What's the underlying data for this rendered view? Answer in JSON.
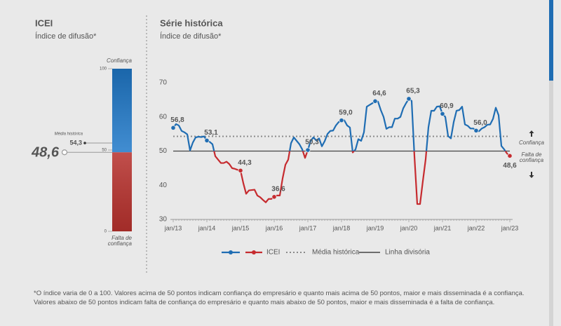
{
  "chart_data": [
    {
      "type": "gauge",
      "title": "ICEI",
      "subtitle": "Índice de difusão*",
      "value": 48.6,
      "value_label": "48,6",
      "ylim": [
        0,
        100
      ],
      "yticks": [
        0,
        50,
        100
      ],
      "top_label": "Confiança",
      "bottom_label": "Falta de confiança",
      "reference": {
        "label": "Média histórica",
        "value": 54.3,
        "value_label": "54,3"
      },
      "colors": {
        "above": "#1f78c8",
        "below": "#b8322e"
      }
    },
    {
      "type": "line",
      "title": "Série histórica",
      "subtitle": "Índice de difusão*",
      "categories": [
        "jan/13",
        null,
        null,
        null,
        null,
        null,
        null,
        null,
        null,
        null,
        null,
        null,
        "jan/14",
        null,
        null,
        null,
        null,
        null,
        null,
        null,
        null,
        null,
        null,
        null,
        "jan/15",
        null,
        null,
        null,
        null,
        null,
        null,
        null,
        null,
        null,
        null,
        null,
        "jan/16",
        null,
        null,
        null,
        null,
        null,
        null,
        null,
        null,
        null,
        null,
        null,
        "jan/17",
        null,
        null,
        null,
        null,
        null,
        null,
        null,
        null,
        null,
        null,
        null,
        "jan/18",
        null,
        null,
        null,
        null,
        null,
        null,
        null,
        null,
        null,
        null,
        null,
        "jan/19",
        null,
        null,
        null,
        null,
        null,
        null,
        null,
        null,
        null,
        null,
        null,
        "jan/20",
        null,
        null,
        null,
        null,
        null,
        null,
        null,
        null,
        null,
        null,
        null,
        "jan/21",
        null,
        null,
        null,
        null,
        null,
        null,
        null,
        null,
        null,
        null,
        null,
        "jan/22",
        null,
        null,
        null,
        null,
        null,
        null,
        null,
        null,
        null,
        null,
        null,
        "jan/23"
      ],
      "series": [
        {
          "name": "ICEI",
          "colors": {
            "above": "#1f6db3",
            "below": "#c62b2f"
          },
          "values": [
            56.8,
            57.9,
            57.5,
            55.9,
            55.5,
            54.9,
            50.2,
            52.5,
            54.0,
            54.2,
            54.1,
            54.3,
            53.1,
            52.7,
            52.0,
            48.5,
            47.5,
            46.5,
            46.5,
            46.9,
            46.2,
            45.0,
            44.8,
            44.5,
            44.3,
            40.6,
            37.5,
            38.5,
            38.6,
            38.7,
            37.0,
            36.5,
            35.7,
            35.0,
            36.0,
            36.0,
            36.6,
            37.0,
            37.0,
            42.0,
            46.0,
            47.5,
            52.3,
            54.0,
            53.0,
            52.0,
            50.5,
            48.0,
            50.3,
            53.0,
            54.0,
            53.1,
            53.7,
            51.4,
            52.9,
            55.0,
            55.9,
            56.0,
            57.5,
            58.5,
            59.0,
            59.0,
            57.5,
            56.9,
            49.6,
            50.5,
            53.5,
            53.0,
            55.5,
            63.0,
            63.5,
            64.0,
            64.6,
            64.5,
            62.0,
            60.0,
            56.5,
            57.0,
            57.0,
            59.5,
            59.5,
            60.0,
            62.5,
            64.0,
            65.3,
            64.7,
            48.5,
            34.5,
            34.5,
            41.2,
            47.6,
            57.0,
            61.8,
            61.8,
            63.0,
            63.1,
            60.9,
            60.0,
            54.4,
            53.7,
            58.5,
            61.8,
            62.0,
            63.0,
            57.8,
            57.4,
            56.6,
            56.6,
            56.0,
            55.8,
            56.6,
            57.0,
            57.7,
            57.8,
            59.4,
            62.7,
            60.5,
            51.5,
            50.5,
            49.3,
            48.6
          ],
          "value_labels": [
            "56,8",
            null,
            null,
            null,
            null,
            null,
            null,
            null,
            null,
            null,
            null,
            null,
            "53,1",
            null,
            null,
            null,
            null,
            null,
            null,
            null,
            null,
            null,
            null,
            null,
            "44,3",
            null,
            null,
            null,
            null,
            null,
            null,
            null,
            null,
            null,
            null,
            null,
            "36,6",
            null,
            null,
            null,
            null,
            null,
            null,
            null,
            null,
            null,
            null,
            null,
            "50,3",
            null,
            null,
            null,
            null,
            null,
            null,
            null,
            null,
            null,
            null,
            null,
            "59,0",
            null,
            null,
            null,
            null,
            null,
            null,
            null,
            null,
            null,
            null,
            null,
            "64,6",
            null,
            null,
            null,
            null,
            null,
            null,
            null,
            null,
            null,
            null,
            null,
            "65,3",
            null,
            null,
            null,
            null,
            null,
            null,
            null,
            null,
            null,
            null,
            null,
            "60,9",
            null,
            null,
            null,
            null,
            null,
            null,
            null,
            null,
            null,
            null,
            null,
            "56,0",
            null,
            null,
            null,
            null,
            null,
            null,
            null,
            null,
            null,
            null,
            null,
            "48,6"
          ]
        }
      ],
      "reference_lines": [
        {
          "name": "Média histórica",
          "value": 54.3,
          "style": "dotted",
          "color": "#8a8a8a"
        },
        {
          "name": "Linha divisória",
          "value": 50,
          "style": "solid",
          "color": "#444444"
        }
      ],
      "ylim": [
        30,
        70
      ],
      "yticks": [
        30,
        40,
        50,
        60,
        70
      ],
      "above_label": "Confiança",
      "below_label": "Falta de confiança"
    }
  ],
  "footnote": "*O índice varia de 0 a 100. Valores acima de 50 pontos indicam confiança do empresário e quanto mais acima de 50 pontos, maior e mais disseminada é a confiança. Valores abaixo de 50 pontos indicam falta de confiança do empresário e quanto mais abaixo de 50 pontos, maior e mais disseminada é a falta de confiança."
}
